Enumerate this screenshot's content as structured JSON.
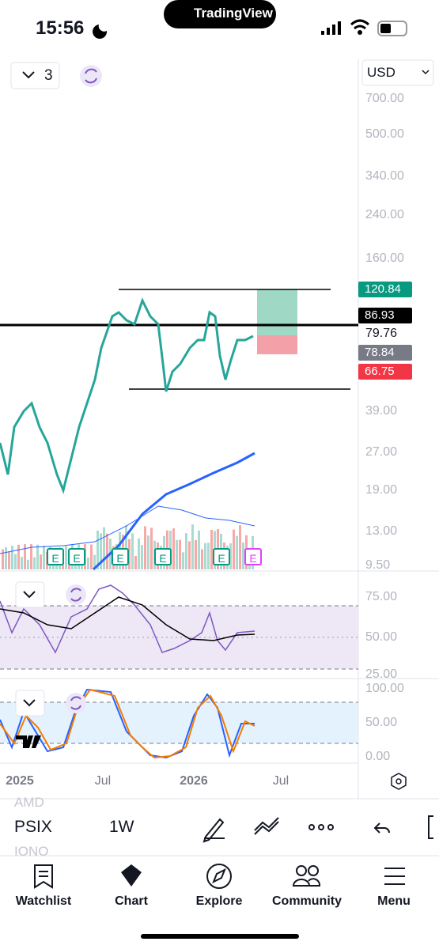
{
  "status_bar": {
    "time": "15:56",
    "app_banner": "TradingView"
  },
  "toolbar": {
    "interval_count": "3",
    "currency": "USD"
  },
  "price_axis": [
    "700.00",
    "500.00",
    "340.00",
    "240.00",
    "160.00",
    "120.84",
    "86.93",
    "79.76",
    "78.84",
    "66.75",
    "39.00",
    "27.00",
    "19.00",
    "13.00",
    "9.50"
  ],
  "earnings_markers": [
    "E",
    "E",
    "E",
    "E",
    "E",
    "E"
  ],
  "rsi_axis": [
    "75.00",
    "50.00",
    "25.00"
  ],
  "stoch_axis": [
    "100.00",
    "50.00",
    "0.00"
  ],
  "time_axis": [
    "2025",
    "Jul",
    "2026",
    "Jul"
  ],
  "symbol_bar": {
    "symbol": "PSIX",
    "interval": "1W",
    "above": "AMD",
    "below": "IONO"
  },
  "nav": [
    "Watchlist",
    "Chart",
    "Explore",
    "Community",
    "Menu"
  ]
}
